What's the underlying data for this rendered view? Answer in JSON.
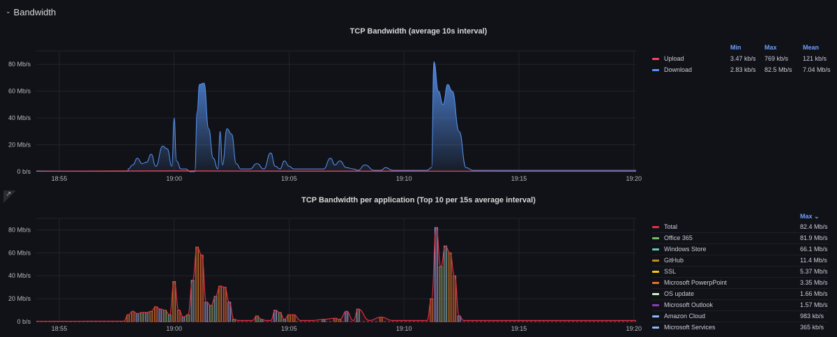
{
  "row": {
    "title": "Bandwidth",
    "collapse_icon": "chevron-down-icon"
  },
  "panel1": {
    "title": "TCP Bandwidth (average 10s interval)",
    "legend_headers": {
      "min": "Min",
      "max": "Max",
      "mean": "Mean"
    },
    "legend": [
      {
        "name": "Upload",
        "color": "#f2495c",
        "min": "3.47 kb/s",
        "max": "769 kb/s",
        "mean": "121 kb/s"
      },
      {
        "name": "Download",
        "color": "#5794f2",
        "min": "2.83 kb/s",
        "max": "82.5 Mb/s",
        "mean": "7.04 Mb/s"
      }
    ]
  },
  "panel2": {
    "title": "TCP Bandwidth per application (Top 10 per 15s average interval)",
    "legend_headers": {
      "max": "Max ⌄"
    },
    "legend": [
      {
        "name": "Total",
        "color": "#e02f44",
        "max": "82.4 Mb/s"
      },
      {
        "name": "Office 365",
        "color": "#73bf69",
        "max": "81.9 Mb/s"
      },
      {
        "name": "Windows Store",
        "color": "#6bc4c4",
        "max": "66.1 Mb/s"
      },
      {
        "name": "GitHub",
        "color": "#c28a1f",
        "max": "11.4 Mb/s"
      },
      {
        "name": "SSL",
        "color": "#f2cc0c",
        "max": "5.37 Mb/s"
      },
      {
        "name": "Microsoft PowerpPoint",
        "color": "#e0752d",
        "max": "3.35 Mb/s"
      },
      {
        "name": "OS update",
        "color": "#c8f2c2",
        "max": "1.66 Mb/s"
      },
      {
        "name": "Microsoft Outlook",
        "color": "#8f3bb8",
        "max": "1.57 Mb/s"
      },
      {
        "name": "Amazon Cloud",
        "color": "#8ab8ff",
        "max": "983 kb/s"
      },
      {
        "name": "Microsoft Services",
        "color": "#8ab8ff",
        "max": "365 kb/s"
      }
    ]
  },
  "chart_data": [
    {
      "type": "area",
      "title": "TCP Bandwidth (average 10s interval)",
      "x_ticks": [
        "18:55",
        "19:00",
        "19:05",
        "19:10",
        "19:15",
        "19:20"
      ],
      "y_ticks": [
        "0 b/s",
        "20 Mb/s",
        "40 Mb/s",
        "60 Mb/s",
        "80 Mb/s"
      ],
      "ylim": [
        0,
        90
      ],
      "x_minutes_range": [
        -6.0,
        20.1
      ],
      "series": [
        {
          "name": "Download",
          "color": "#5794f2",
          "x": [
            -6.0,
            -4.0,
            -2.0,
            -2.2,
            -2.4,
            -2.0,
            -1.8,
            -1.6,
            -1.4,
            -1.2,
            -1.0,
            -0.8,
            -0.5,
            -0.3,
            -0.1,
            0.0,
            0.1,
            0.3,
            0.5,
            0.7,
            0.9,
            1.0,
            1.1,
            1.3,
            1.5,
            1.7,
            1.9,
            2.0,
            2.1,
            2.3,
            2.5,
            2.7,
            2.9,
            3.1,
            3.3,
            3.6,
            3.9,
            4.2,
            4.4,
            4.6,
            4.8,
            5.0,
            5.2,
            5.4,
            5.6,
            6.0,
            6.5,
            6.8,
            7.0,
            7.2,
            7.5,
            7.8,
            8.0,
            8.3,
            8.7,
            9.0,
            9.2,
            9.5,
            9.8,
            10.2,
            10.6,
            11.0,
            11.2,
            11.3,
            11.5,
            11.7,
            11.9,
            12.1,
            12.4,
            12.7,
            13.0,
            14.0,
            15.0,
            16.0,
            17.0,
            18.0,
            19.0,
            20.1
          ],
          "y": [
            0.5,
            0.3,
            0.3,
            0.3,
            0.3,
            2,
            5,
            10,
            6,
            7,
            13,
            4,
            19,
            17,
            4,
            40,
            8,
            2,
            2,
            0,
            0,
            45,
            65,
            66,
            32,
            10,
            2,
            30,
            5,
            32,
            28,
            6,
            2,
            2,
            2,
            6,
            2,
            14,
            4,
            2,
            8,
            4,
            2,
            2,
            2,
            2,
            2,
            10,
            5,
            8,
            3,
            2,
            1,
            5,
            1,
            1,
            3,
            1,
            1,
            1,
            1,
            1,
            3,
            82,
            60,
            50,
            65,
            60,
            30,
            3,
            1,
            1,
            1,
            1,
            1,
            1,
            1,
            1
          ]
        },
        {
          "name": "Upload",
          "color": "#f2495c",
          "x": [
            -6.0,
            0.0,
            5.0,
            10.0,
            15.0,
            20.1
          ],
          "y": [
            0.3,
            0.6,
            0.4,
            0.4,
            0.3,
            0.3
          ]
        }
      ]
    },
    {
      "type": "bar",
      "title": "TCP Bandwidth per application (Top 10 per 15s average interval)",
      "x_ticks": [
        "18:55",
        "19:00",
        "19:05",
        "19:10",
        "19:15",
        "19:20"
      ],
      "y_ticks": [
        "0 b/s",
        "20 Mb/s",
        "40 Mb/s",
        "60 Mb/s",
        "80 Mb/s"
      ],
      "ylim": [
        0,
        90
      ],
      "x_minutes_range": [
        -6.0,
        20.1
      ],
      "series": [
        {
          "name": "Total",
          "color": "#e02f44",
          "x": [
            -6.0,
            -2.2,
            -2.0,
            -1.8,
            -1.6,
            -1.4,
            -1.2,
            -1.0,
            -0.8,
            -0.6,
            -0.4,
            -0.2,
            0.0,
            0.2,
            0.4,
            0.6,
            0.8,
            1.0,
            1.2,
            1.4,
            1.6,
            1.8,
            2.0,
            2.2,
            2.4,
            2.6,
            2.8,
            3.0,
            3.2,
            3.4,
            3.6,
            3.8,
            4.0,
            4.2,
            4.4,
            4.6,
            4.8,
            5.0,
            5.2,
            5.5,
            6.0,
            6.5,
            7.0,
            7.2,
            7.5,
            7.8,
            8.0,
            8.5,
            9.0,
            9.5,
            10.0,
            10.5,
            11.0,
            11.2,
            11.4,
            11.6,
            11.8,
            12.0,
            12.2,
            12.4,
            12.6,
            13.0,
            15.0,
            18.0,
            20.1
          ],
          "y": [
            0.3,
            0.4,
            6,
            9,
            7,
            8,
            8,
            9,
            13,
            11,
            10,
            6,
            35,
            10,
            4,
            6,
            36,
            65,
            58,
            17,
            14,
            22,
            31,
            30,
            17,
            2,
            1,
            1,
            1,
            1,
            5,
            2,
            1,
            1,
            10,
            8,
            2,
            6,
            6,
            1,
            1,
            2,
            3,
            2,
            9,
            1,
            11,
            1,
            4,
            1,
            1,
            1,
            1,
            20,
            82,
            48,
            66,
            60,
            40,
            5,
            1,
            1,
            1,
            1,
            1
          ]
        }
      ]
    }
  ]
}
